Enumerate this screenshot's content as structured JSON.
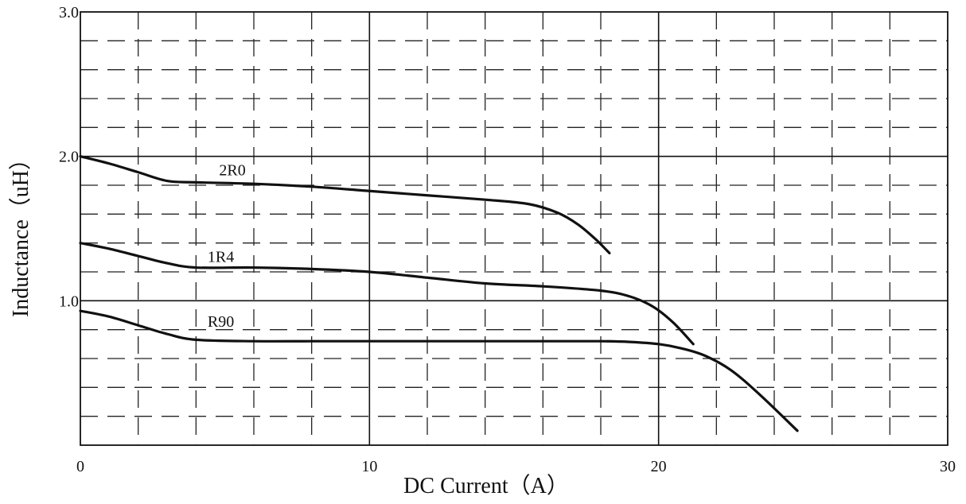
{
  "chart_data": {
    "type": "line",
    "title": "",
    "xlabel": "DC Current（A）",
    "ylabel": "Inductance（uH）",
    "xlim": [
      0,
      30
    ],
    "ylim": [
      0,
      3.0
    ],
    "x_ticks": [
      0,
      10,
      20,
      30
    ],
    "x_tick_labels": [
      "0",
      "10",
      "20",
      "30"
    ],
    "y_ticks": [
      1.0,
      2.0,
      3.0
    ],
    "y_tick_labels": [
      "1.0",
      "2.0",
      "3.0"
    ],
    "grid": {
      "major": true,
      "minor": true,
      "x_major_step": 10,
      "x_minor_step": 2,
      "y_major_step": 1.0,
      "y_minor_step": 0.2
    },
    "legend": "none",
    "series": [
      {
        "name": "2R0",
        "color": "#111111",
        "x": [
          0,
          1,
          2,
          3,
          4,
          6,
          8,
          10,
          12,
          14,
          15.5,
          16.5,
          17.2,
          17.8,
          18.3
        ],
        "y": [
          2.0,
          1.95,
          1.89,
          1.83,
          1.82,
          1.81,
          1.79,
          1.76,
          1.73,
          1.7,
          1.67,
          1.61,
          1.53,
          1.43,
          1.33
        ]
      },
      {
        "name": "1R4",
        "color": "#111111",
        "x": [
          0,
          1,
          2,
          3,
          4,
          6,
          8,
          10,
          12,
          14,
          16,
          18,
          19,
          19.8,
          20.5,
          21.2
        ],
        "y": [
          1.4,
          1.36,
          1.31,
          1.26,
          1.23,
          1.23,
          1.22,
          1.2,
          1.16,
          1.12,
          1.1,
          1.07,
          1.03,
          0.96,
          0.85,
          0.7
        ]
      },
      {
        "name": "R90",
        "color": "#111111",
        "x": [
          0,
          1,
          2,
          3,
          4,
          6,
          8,
          10,
          12,
          14,
          16,
          18,
          19,
          20,
          20.8,
          21.6,
          22.5,
          23.5,
          24.8
        ],
        "y": [
          0.93,
          0.89,
          0.83,
          0.77,
          0.73,
          0.72,
          0.72,
          0.72,
          0.72,
          0.72,
          0.72,
          0.72,
          0.715,
          0.7,
          0.67,
          0.62,
          0.52,
          0.35,
          0.1
        ]
      }
    ],
    "annotations": [
      {
        "text": "2R0",
        "x": 4.8,
        "y": 1.87
      },
      {
        "text": "1R4",
        "x": 4.4,
        "y": 1.27
      },
      {
        "text": "R90",
        "x": 4.4,
        "y": 0.82
      }
    ]
  }
}
